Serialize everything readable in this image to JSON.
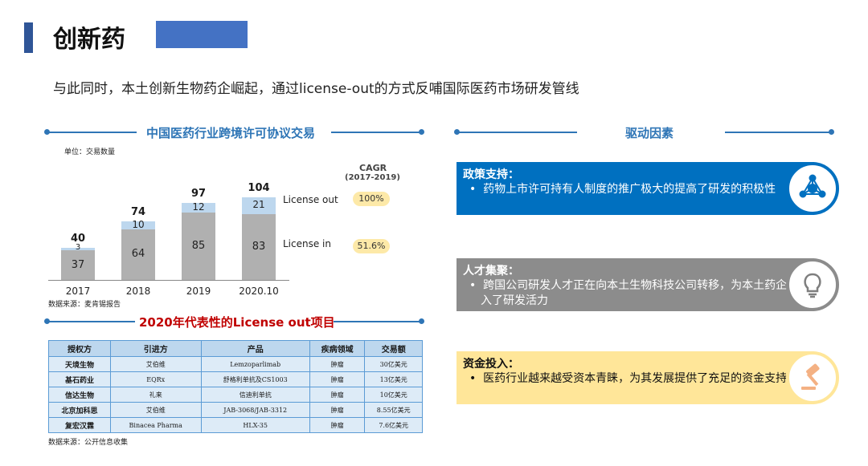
{
  "header": {
    "title": "创新药",
    "subtitle": "与此同时，本土创新生物药企崛起，通过license-out的方式反哺国际医药市场研发管线"
  },
  "chart_section": {
    "title": "中国医药行业跨境许可协议交易",
    "unit": "单位：交易数量",
    "source": "数据来源：麦肯锡报告"
  },
  "chart_data": {
    "type": "bar",
    "stacked": true,
    "categories": [
      "2017",
      "2018",
      "2019",
      "2020.10"
    ],
    "series": [
      {
        "name": "License in",
        "values": [
          37,
          64,
          85,
          83
        ],
        "color": "#b0b0b0"
      },
      {
        "name": "License out",
        "values": [
          3,
          10,
          12,
          21
        ],
        "color": "#bdd7ee"
      }
    ],
    "totals": [
      "40",
      "74",
      "97",
      "104"
    ],
    "cagr_title": "CAGR",
    "cagr_period": "(2017-2019)",
    "cagr": {
      "license_out": "100%",
      "license_in": "51.6%"
    }
  },
  "table_section": {
    "title": "2020年代表性的License out项目",
    "source": "数据来源：公开信息收集",
    "headers": [
      "授权方",
      "引进方",
      "产品",
      "疾病领域",
      "交易额"
    ],
    "rows": [
      [
        "天境生物",
        "艾伯维",
        "Lemzoparlimab",
        "肿瘤",
        "30亿美元"
      ],
      [
        "基石药业",
        "EQRx",
        "舒格利单抗及CS1003",
        "肿瘤",
        "13亿美元"
      ],
      [
        "信达生物",
        "礼来",
        "信迪利单抗",
        "肿瘤",
        "10亿美元"
      ],
      [
        "北京加科思",
        "艾伯维",
        "JAB-3068/JAB-3312",
        "肿瘤",
        "8.55亿美元"
      ],
      [
        "复宏汉霖",
        "Binacea Pharma",
        "HLX-35",
        "肿瘤",
        "7.6亿美元"
      ]
    ]
  },
  "drivers": {
    "title": "驱动因素",
    "items": [
      {
        "title": "政策支持：",
        "bullet": "•",
        "text": "药物上市许可持有人制度的推广极大的提高了研发的积极性",
        "icon": "molecule-icon",
        "color": "#0070c0"
      },
      {
        "title": "人才集聚：",
        "bullet": "•",
        "text": "跨国公司研发人才正在向本土生物科技公司转移，为本土药企注入了研发活力",
        "icon": "lightbulb-icon",
        "color": "#8c8c8c"
      },
      {
        "title": "资金投入：",
        "bullet": "•",
        "text": "医药行业越来越受资本青睐，为其发展提供了充足的资金支持",
        "icon": "gavel-icon",
        "color": "#ffe699"
      }
    ]
  }
}
